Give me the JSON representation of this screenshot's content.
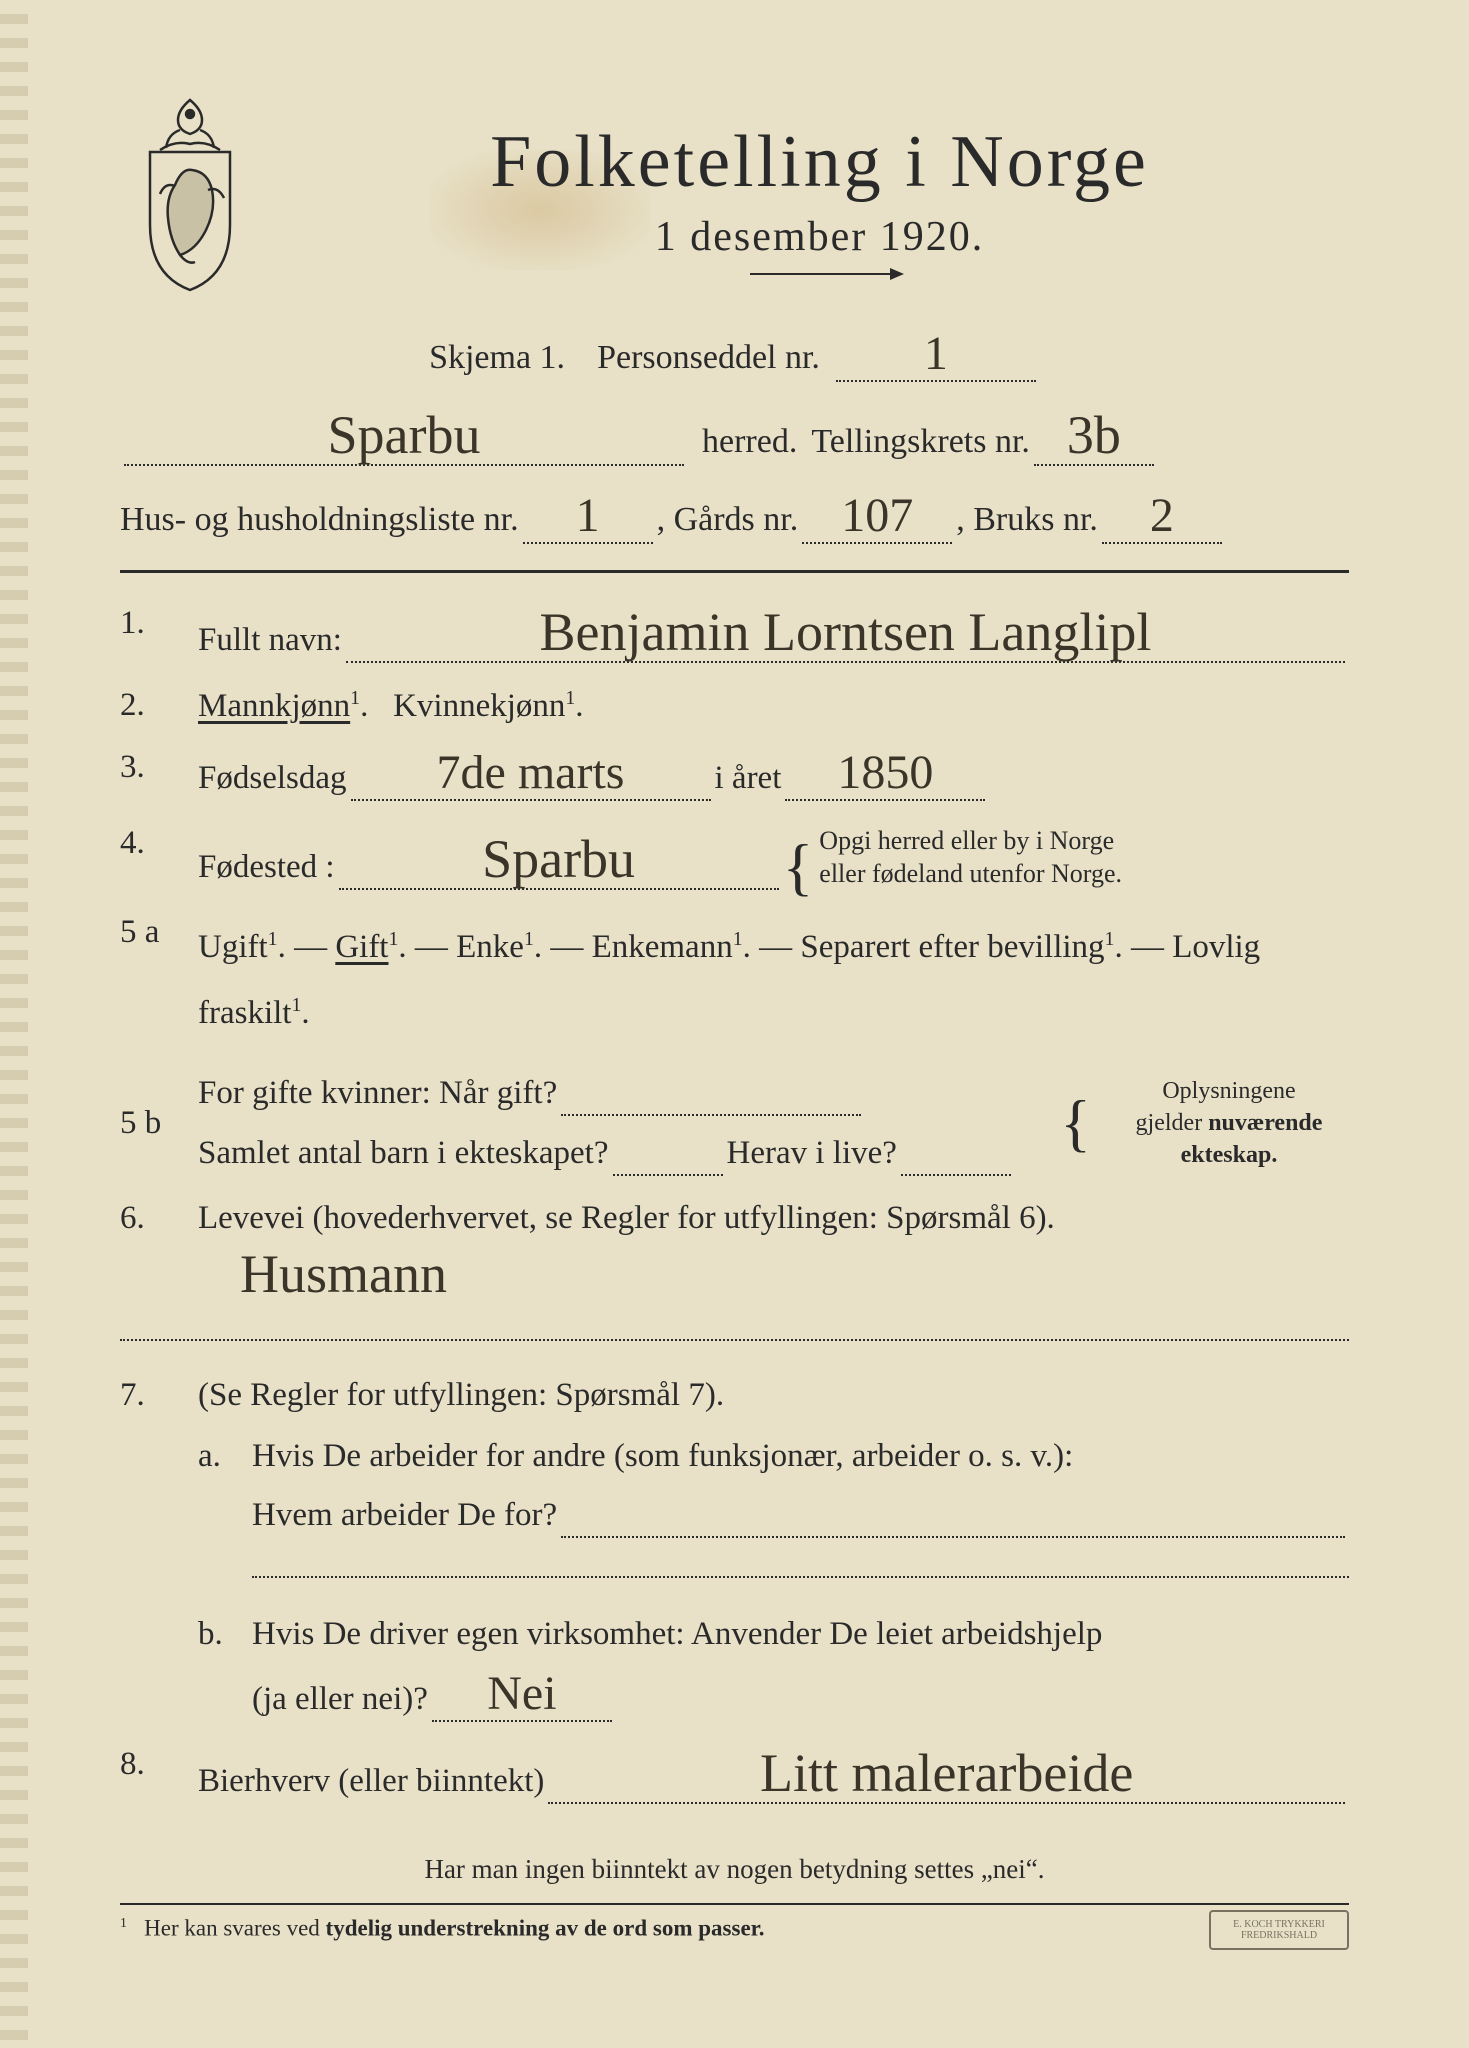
{
  "colors": {
    "paper": "#e8e1c8",
    "ink": "#2a2a2a",
    "handwriting": "#3a3528",
    "stain": "rgba(180,130,50,0.25)"
  },
  "header": {
    "title": "Folketelling  i  Norge",
    "subtitle": "1 desember 1920."
  },
  "meta": {
    "skjema_label": "Skjema 1.",
    "personseddel_label": "Personseddel nr.",
    "personseddel_nr": "1",
    "herred_label": "herred.",
    "herred_value": "Sparbu",
    "tellingskrets_label": "Tellingskrets nr.",
    "tellingskrets_nr": "3b",
    "hushold_label": "Hus- og husholdningsliste nr.",
    "hushold_nr": "1",
    "gards_label": "Gårds nr.",
    "gards_nr": "107",
    "bruks_label": "Bruks nr.",
    "bruks_nr": "2"
  },
  "q1": {
    "num": "1.",
    "label": "Fullt navn:",
    "value": "Benjamin Lorntsen Langlipl"
  },
  "q2": {
    "num": "2.",
    "mann": "Mannkjønn",
    "kvinne": "Kvinnekjønn",
    "sup": "1",
    "dot": "."
  },
  "q3": {
    "num": "3.",
    "label": "Fødselsdag",
    "day_value": "7de marts",
    "year_label": "i året",
    "year_value": "1850"
  },
  "q4": {
    "num": "4.",
    "label": "Fødested :",
    "value": "Sparbu",
    "note_l1": "Opgi herred eller by i Norge",
    "note_l2": "eller fødeland utenfor Norge."
  },
  "q5a": {
    "num": "5 a",
    "options": [
      "Ugift",
      "Gift",
      "Enke",
      "Enkemann",
      "Separert efter bevilling",
      "Lovlig fraskilt"
    ],
    "sup": "1",
    "sep": ". —",
    "end": ".",
    "underlined_index": 1
  },
  "q5b": {
    "num": "5 b",
    "l1": "For gifte kvinner:  Når gift?",
    "l2a": "Samlet antal barn i ekteskapet?",
    "l2b": "Herav i live?",
    "note_l1": "Oplysningene",
    "note_l2": "gjelder nuværende",
    "note_l3": "ekteskap."
  },
  "q6": {
    "num": "6.",
    "label": "Levevei (hovederhvervet, se Regler for utfyllingen: Spørsmål 6).",
    "value": "Husmann"
  },
  "q7": {
    "num": "7.",
    "label": "(Se Regler for utfyllingen:  Spørsmål 7).",
    "a": {
      "letter": "a.",
      "l1": "Hvis De arbeider for andre (som funksjonær, arbeider o. s. v.):",
      "l2": "Hvem arbeider De for?"
    },
    "b": {
      "letter": "b.",
      "l1": "Hvis De driver egen virksomhet:  Anvender De leiet arbeidshjelp",
      "l2": "(ja eller nei)?",
      "value": "Nei"
    }
  },
  "q8": {
    "num": "8.",
    "label": "Bierhverv (eller biinntekt)",
    "value": "Litt malerarbeide"
  },
  "footnotes": {
    "f1": "Har man ingen biinntekt av nogen betydning settes „nei“.",
    "f2_num": "1",
    "f2": "Her kan svares ved tydelig understrekning av de ord som passer."
  },
  "stamp": "E. KOCH TRYKKERI\nFREDRIKSHALD"
}
